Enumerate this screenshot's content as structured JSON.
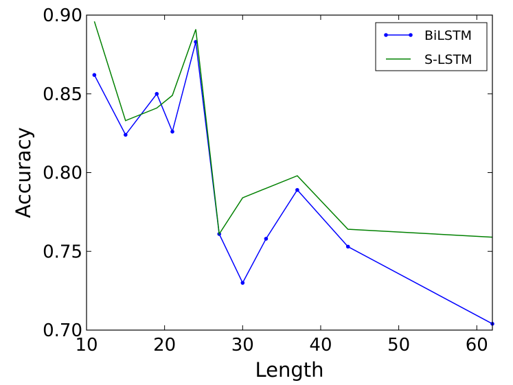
{
  "chart_data": {
    "type": "line",
    "title": "",
    "xlabel": "Length",
    "ylabel": "Accuracy",
    "xlim": [
      10,
      62
    ],
    "ylim": [
      0.7,
      0.9
    ],
    "xticks": [
      10,
      20,
      30,
      40,
      50,
      60
    ],
    "xtick_labels": [
      "10",
      "20",
      "30",
      "40",
      "50",
      "60"
    ],
    "yticks": [
      0.7,
      0.75,
      0.8,
      0.85,
      0.9
    ],
    "ytick_labels": [
      "0.70",
      "0.75",
      "0.80",
      "0.85",
      "0.90"
    ],
    "grid": false,
    "legend_position": "top-right",
    "series": [
      {
        "name": "BiLSTM",
        "color": "#0000ff",
        "marker": "dot",
        "x": [
          11,
          15,
          19,
          21,
          24,
          27,
          30,
          33,
          37,
          43.5,
          62
        ],
        "y": [
          0.862,
          0.824,
          0.85,
          0.826,
          0.883,
          0.761,
          0.73,
          0.758,
          0.789,
          0.753,
          0.704
        ]
      },
      {
        "name": "S-LSTM",
        "color": "#008000",
        "marker": "none",
        "x": [
          11,
          15,
          19,
          21,
          24,
          27,
          30,
          33,
          37,
          43.5,
          62
        ],
        "y": [
          0.896,
          0.833,
          0.841,
          0.849,
          0.891,
          0.761,
          0.784,
          0.79,
          0.798,
          0.764,
          0.759
        ]
      }
    ]
  }
}
